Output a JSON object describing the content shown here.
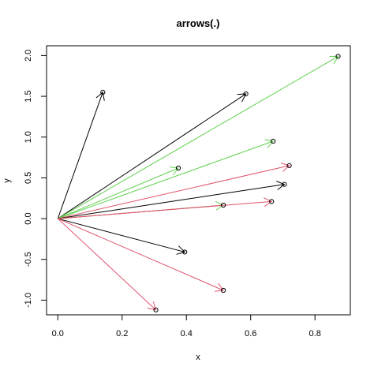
{
  "chart_data": {
    "type": "scatter",
    "title": "arrows(.)",
    "xlabel": "x",
    "ylabel": "y",
    "xlim": [
      -0.035,
      0.91
    ],
    "ylim": [
      -1.18,
      2.12
    ],
    "xticks": [
      "0.0",
      "0.2",
      "0.4",
      "0.6",
      "0.8"
    ],
    "yticks": [
      "-1.0",
      "-0.5",
      "0.0",
      "0.5",
      "1.0",
      "1.5",
      "2.0"
    ],
    "grid": false,
    "origin": [
      0,
      0
    ],
    "arrows": [
      {
        "x": 0.14,
        "y": 1.55,
        "color": "#000000"
      },
      {
        "x": 0.585,
        "y": 1.53,
        "color": "#000000"
      },
      {
        "x": 0.872,
        "y": 1.99,
        "color": "#61D04F"
      },
      {
        "x": 0.67,
        "y": 0.95,
        "color": "#61D04F"
      },
      {
        "x": 0.375,
        "y": 0.62,
        "color": "#61D04F"
      },
      {
        "x": 0.72,
        "y": 0.65,
        "color": "#DF536B"
      },
      {
        "x": 0.705,
        "y": 0.42,
        "color": "#000000"
      },
      {
        "x": 0.515,
        "y": 0.165,
        "color": "#61D04F"
      },
      {
        "x": 0.665,
        "y": 0.21,
        "color": "#DF536B"
      },
      {
        "x": 0.395,
        "y": -0.41,
        "color": "#000000"
      },
      {
        "x": 0.515,
        "y": -0.88,
        "color": "#DF536B"
      },
      {
        "x": 0.305,
        "y": -1.12,
        "color": "#DF536B"
      }
    ],
    "overlay_lines": [
      {
        "x": 0.515,
        "y": 0.165,
        "color": "#DF536B"
      }
    ]
  }
}
